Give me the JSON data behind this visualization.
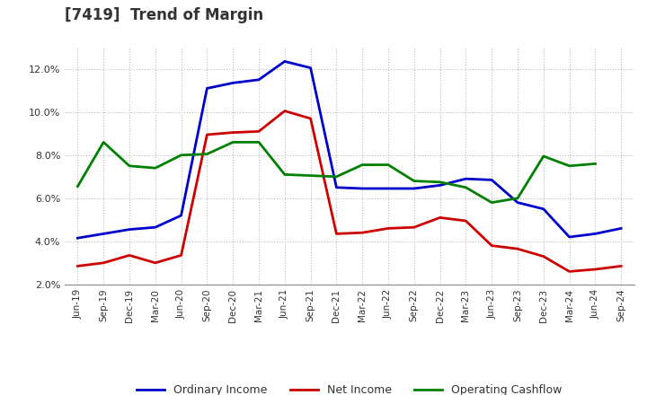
{
  "title": "[7419]  Trend of Margin",
  "x_labels": [
    "Jun-19",
    "Sep-19",
    "Dec-19",
    "Mar-20",
    "Jun-20",
    "Sep-20",
    "Dec-20",
    "Mar-21",
    "Jun-21",
    "Sep-21",
    "Dec-21",
    "Mar-22",
    "Jun-22",
    "Sep-22",
    "Dec-22",
    "Mar-23",
    "Jun-23",
    "Sep-23",
    "Dec-23",
    "Mar-24",
    "Jun-24",
    "Sep-24"
  ],
  "ordinary_income": [
    4.15,
    4.35,
    4.55,
    4.65,
    5.2,
    11.1,
    11.35,
    11.5,
    12.35,
    12.05,
    6.5,
    6.45,
    6.45,
    6.45,
    6.6,
    6.9,
    6.85,
    5.8,
    5.5,
    4.2,
    4.35,
    4.6
  ],
  "net_income": [
    2.85,
    3.0,
    3.35,
    3.0,
    3.35,
    8.95,
    9.05,
    9.1,
    10.05,
    9.7,
    4.35,
    4.4,
    4.6,
    4.65,
    5.1,
    4.95,
    3.8,
    3.65,
    3.3,
    2.6,
    2.7,
    2.85
  ],
  "operating_cashflow": [
    6.55,
    8.6,
    7.5,
    7.4,
    8.0,
    8.05,
    8.6,
    8.6,
    7.1,
    7.05,
    7.0,
    7.55,
    7.55,
    6.8,
    6.75,
    6.5,
    5.8,
    6.0,
    7.95,
    7.5,
    7.6,
    null
  ],
  "ylim": [
    2.0,
    13.0
  ],
  "yticks": [
    2.0,
    4.0,
    6.0,
    8.0,
    10.0,
    12.0
  ],
  "color_ordinary": "#0000cc",
  "color_net": "#cc0000",
  "color_cashflow": "#008000",
  "legend_labels": [
    "Ordinary Income",
    "Net Income",
    "Operating Cashflow"
  ],
  "background_color": "#ffffff",
  "grid_color": "#aaaaaa",
  "title_color": "#333333"
}
